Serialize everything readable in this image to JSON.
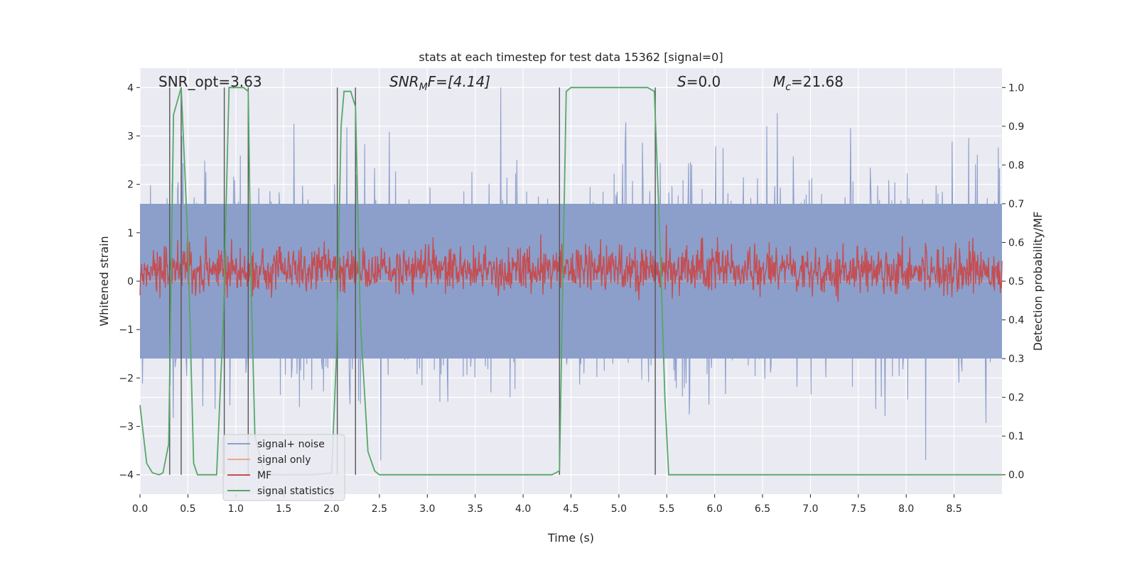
{
  "chart_data": {
    "type": "line",
    "title": "stats at each timestep for test data 15362 [signal=0]",
    "xlabel": "Time (s)",
    "ylabel": "Whitened strain",
    "ylabel_right": "Detection probability/MF",
    "xlim": [
      0,
      9
    ],
    "ylim": [
      -4.4,
      4.4
    ],
    "ylim_right": [
      -0.05,
      1.05
    ],
    "xticks": [
      0.0,
      0.5,
      1.0,
      1.5,
      2.0,
      2.5,
      3.0,
      3.5,
      4.0,
      4.5,
      5.0,
      5.5,
      6.0,
      6.5,
      7.0,
      7.5,
      8.0,
      8.5
    ],
    "xtick_labels": [
      "0.0",
      "0.5",
      "1.0",
      "1.5",
      "2.0",
      "2.5",
      "3.0",
      "3.5",
      "4.0",
      "4.5",
      "5.0",
      "5.5",
      "6.0",
      "6.5",
      "7.0",
      "7.5",
      "8.0",
      "8.5"
    ],
    "yticks": [
      -4,
      -3,
      -2,
      -1,
      0,
      1,
      2,
      3,
      4
    ],
    "ytick_labels": [
      "−4",
      "−3",
      "−2",
      "−1",
      "0",
      "1",
      "2",
      "3",
      "4"
    ],
    "yticks_right": [
      0.0,
      0.1,
      0.2,
      0.3,
      0.4,
      0.5,
      0.6,
      0.7,
      0.8,
      0.9,
      1.0
    ],
    "ytick_labels_right": [
      "0.0",
      "0.1",
      "0.2",
      "0.3",
      "0.4",
      "0.5",
      "0.6",
      "0.7",
      "0.8",
      "0.9",
      "1.0"
    ],
    "grid": true,
    "legend_position": "lower-left",
    "annotations": {
      "snr_opt": "SNR_opt=3.63",
      "snr_mf_prefix": "SNR",
      "snr_mf_sub": "M",
      "snr_mf_suffix": "F=[4.14]",
      "s_prefix": "S",
      "s_value": "=0.0",
      "mc_prefix": "M",
      "mc_sub": "c",
      "mc_value": "=21.68"
    },
    "series": [
      {
        "name": "signal+ noise",
        "color": "#8c9fcb",
        "kind": "noise",
        "noise_amplitude": 1.6,
        "peak_amplitude": 4.0
      },
      {
        "name": "signal only",
        "color": "#e9a98a",
        "kind": "flat",
        "y": 0
      },
      {
        "name": "MF",
        "color": "#c44e52",
        "kind": "mf",
        "level": 0.53,
        "spread": 0.03
      },
      {
        "name": "signal statistics",
        "color": "#55a868",
        "kind": "line",
        "axis": "right",
        "x": [
          0.0,
          0.07,
          0.13,
          0.2,
          0.24,
          0.3,
          0.35,
          0.43,
          0.5,
          0.56,
          0.6,
          0.65,
          0.8,
          0.87,
          0.93,
          1.0,
          1.08,
          1.13,
          1.16,
          1.2,
          1.3,
          1.5,
          1.8,
          2.0,
          2.05,
          2.1,
          2.13,
          2.2,
          2.25,
          2.3,
          2.38,
          2.45,
          2.5,
          3.0,
          3.5,
          4.0,
          4.3,
          4.38,
          4.4,
          4.45,
          4.5,
          5.0,
          5.3,
          5.37,
          5.43,
          5.48,
          5.52,
          5.6,
          6.0,
          7.0,
          8.0,
          9.0
        ],
        "y": [
          0.18,
          0.03,
          0.005,
          0.0,
          0.005,
          0.08,
          0.93,
          1.0,
          0.6,
          0.03,
          0.0,
          0.0,
          0.0,
          0.4,
          1.0,
          1.0,
          1.0,
          0.99,
          0.5,
          0.1,
          0.0,
          0.0,
          0.0,
          0.005,
          0.3,
          0.9,
          0.99,
          0.99,
          0.95,
          0.4,
          0.06,
          0.01,
          0.0,
          0.0,
          0.0,
          0.0,
          0.0,
          0.01,
          0.3,
          0.99,
          1.0,
          1.0,
          1.0,
          0.99,
          0.6,
          0.2,
          0.0,
          0.0,
          0.0,
          0.0,
          0.0,
          0.0
        ]
      }
    ],
    "vertical_lines_x": [
      0.31,
      0.43,
      0.88,
      1.13,
      2.06,
      2.25,
      4.38,
      5.38
    ]
  }
}
